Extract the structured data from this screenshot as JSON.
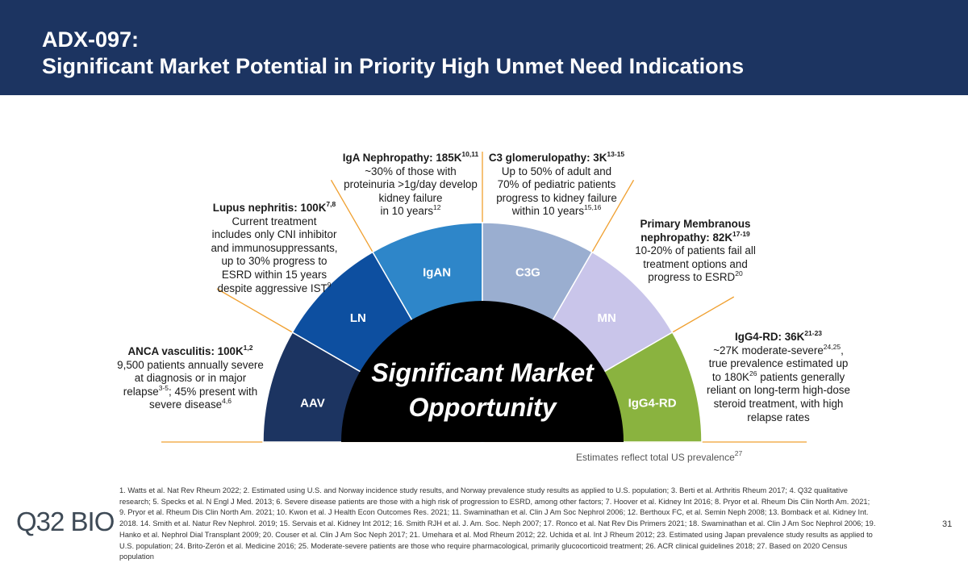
{
  "header": {
    "title": [
      "ADX-097:",
      "Significant Market Potential in Priority High Unmet Need Indications"
    ]
  },
  "segments": [
    {
      "label": "AAV"
    },
    {
      "label": "LN"
    },
    {
      "label": "IgAN"
    },
    {
      "label": "C3G"
    },
    {
      "label": "MN"
    },
    {
      "label": "IgG4-RD"
    }
  ],
  "center_text": [
    "Significant Market",
    "Opportunity"
  ],
  "callouts": [
    {
      "heading": [
        [
          {
            "text": "ANCA vasculitis: 100K"
          },
          {
            "sup": "1,2"
          }
        ]
      ],
      "body": [
        [
          {
            "text": "9,500 patients annually severe"
          }
        ],
        [
          {
            "text": "at diagnosis or in major"
          }
        ],
        [
          {
            "text": "relapse"
          },
          {
            "sup": "3-5"
          },
          {
            "text": "; 45% present with"
          }
        ],
        [
          {
            "text": "severe disease"
          },
          {
            "sup": "4,6"
          }
        ]
      ]
    },
    {
      "heading": [
        [
          {
            "text": "Lupus nephritis: 100K"
          },
          {
            "sup": "7,8"
          }
        ]
      ],
      "body": [
        [
          {
            "text": "Current treatment"
          }
        ],
        [
          {
            "text": "includes only CNI inhibitor"
          }
        ],
        [
          {
            "text": "and immunosuppressants,"
          }
        ],
        [
          {
            "text": "up to 30% progress to"
          }
        ],
        [
          {
            "text": "ESRD within 15 years"
          }
        ],
        [
          {
            "text": "despite aggressive IST"
          },
          {
            "sup": "9"
          }
        ]
      ]
    },
    {
      "heading": [
        [
          {
            "text": "IgA Nephropathy: 185K"
          },
          {
            "sup": "10,11"
          }
        ]
      ],
      "body": [
        [
          {
            "text": "~30% of those with"
          }
        ],
        [
          {
            "text": "proteinuria >1g/day develop"
          }
        ],
        [
          {
            "text": "kidney failure"
          }
        ],
        [
          {
            "text": "in 10 years"
          },
          {
            "sup": "12"
          }
        ]
      ]
    },
    {
      "heading": [
        [
          {
            "text": "C3 glomerulopathy: 3K"
          },
          {
            "sup": "13-15"
          }
        ]
      ],
      "body": [
        [
          {
            "text": "Up to 50% of adult and"
          }
        ],
        [
          {
            "text": "70% of pediatric patients"
          }
        ],
        [
          {
            "text": "progress to kidney failure"
          }
        ],
        [
          {
            "text": "within 10 years"
          },
          {
            "sup": "15,16"
          }
        ]
      ]
    },
    {
      "heading": [
        [
          {
            "text": "Primary Membranous"
          }
        ],
        [
          {
            "text": "nephropathy: 82K"
          },
          {
            "sup": "17-19"
          }
        ]
      ],
      "body": [
        [
          {
            "text": "10-20% of patients fail all"
          }
        ],
        [
          {
            "text": "treatment options and"
          }
        ],
        [
          {
            "text": "progress to ESRD"
          },
          {
            "sup": "20"
          }
        ]
      ]
    },
    {
      "heading": [
        [
          {
            "text": "IgG4-RD: 36K"
          },
          {
            "sup": "21-23"
          }
        ]
      ],
      "body": [
        [
          {
            "text": "~27K moderate-severe"
          },
          {
            "sup": "24,25"
          },
          {
            "text": ","
          }
        ],
        [
          {
            "text": "true prevalence estimated up"
          }
        ],
        [
          {
            "text": "to 180K"
          },
          {
            "sup": "26"
          },
          {
            "text": " patients generally"
          }
        ],
        [
          {
            "text": "reliant on long-term high-dose"
          }
        ],
        [
          {
            "text": "steroid treatment, with high"
          }
        ],
        [
          {
            "text": "relapse rates"
          }
        ]
      ]
    }
  ],
  "prevalence_note": {
    "text": "Estimates reflect total US prevalence",
    "sup": "27"
  },
  "references": "1. Watts et al. Nat Rev Rheum 2022; 2. Estimated using U.S. and Norway incidence study results, and Norway prevalence study results as applied to U.S. population; 3. Berti et al. Arthritis Rheum 2017; 4. Q32 qualitative research; 5. Specks et al. N Engl J Med. 2013; 6. Severe disease patients are those with a high risk of progression to ESRD, among other factors; 7. Hoover et al. Kidney Int 2016; 8. Pryor et al. Rheum Dis Clin North Am. 2021; 9. Pryor et al. Rheum Dis Clin North Am. 2021; 10. Kwon et al. J Health Econ Outcomes Res. 2021; 11. Swaminathan et al. Clin J Am Soc Nephrol 2006; 12. Berthoux FC, et al. Semin Neph 2008; 13. Bomback et al. Kidney Int. 2018. 14. Smith et al. Natur Rev Nephrol. 2019; 15. Servais et al. Kidney Int 2012; 16. Smith RJH et al. J. Am. Soc. Neph  2007; 17. Ronco et al. Nat Rev Dis Primers 2021; 18. Swaminathan et al. Clin J Am Soc Nephrol 2006; 19. Hanko et al. Nephrol Dial Transplant 2009; 20. Couser et al. Clin J Am Soc Neph 2017; 21. Umehara et al. Mod Rheum 2012; 22. Uchida et al. Int J Rheum 2012; 23. Estimated using Japan prevalence study results as applied to U.S. population; 24. Brito-Zerón et al. Medicine 2016; 25. Moderate-severe patients are those who require  pharmacological, primarily glucocorticoid treatment; 26. ACR clinical guidelines 2018; 27. Based on 2020 Census population",
  "logo": "Q32 BIO",
  "page_number": "31"
}
